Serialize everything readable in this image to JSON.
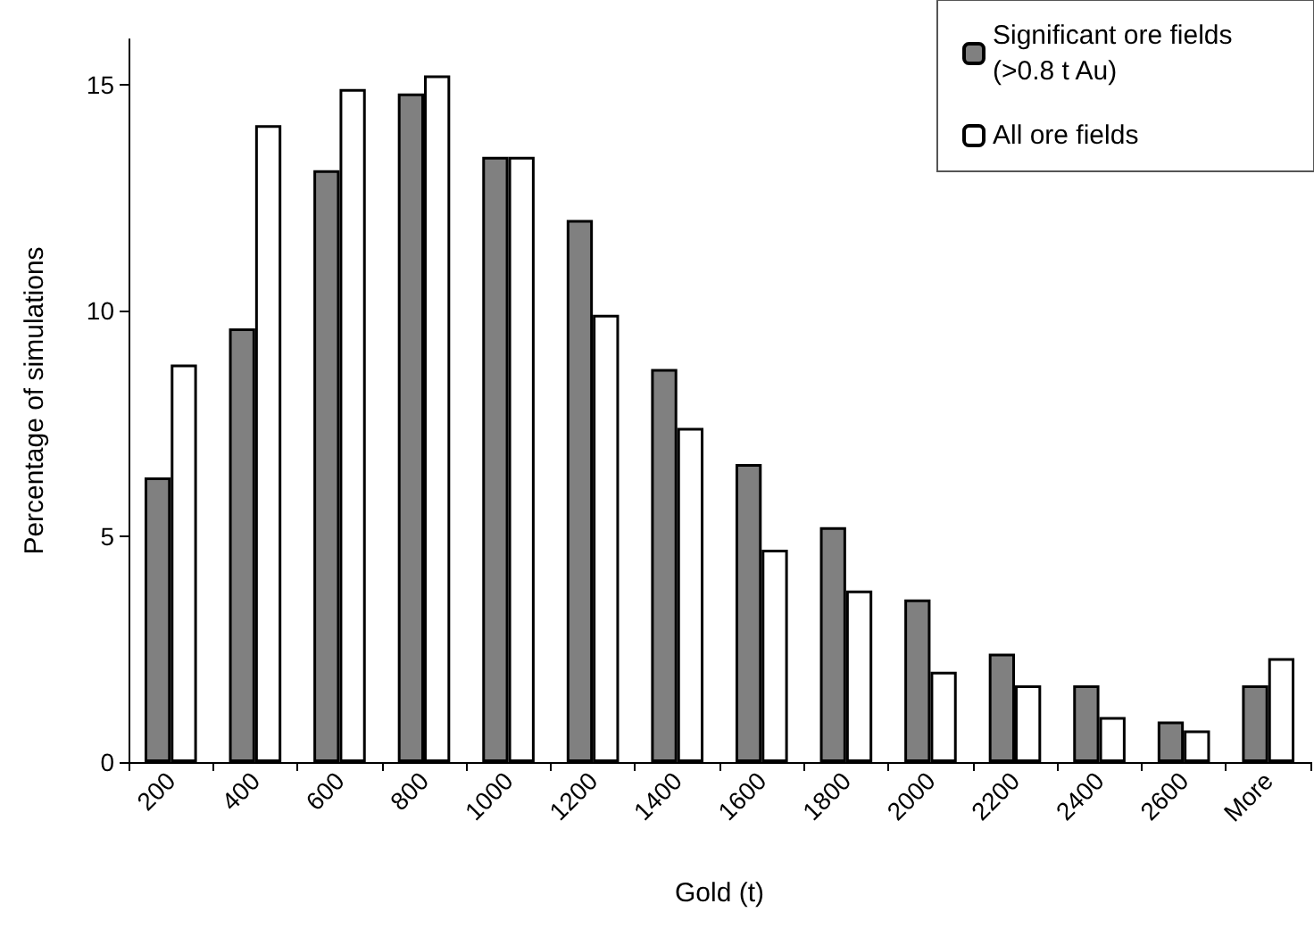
{
  "chart_data": {
    "type": "bar",
    "xlabel": "Gold (t)",
    "ylabel": "Percentage of simulations",
    "categories": [
      "200",
      "400",
      "600",
      "800",
      "1000",
      "1200",
      "1400",
      "1600",
      "1800",
      "2000",
      "2200",
      "2400",
      "2600",
      "More"
    ],
    "series": [
      {
        "name": "Significant ore fields (>0.8 t Au)",
        "color": "#808080",
        "values": [
          6.3,
          9.6,
          13.1,
          14.8,
          13.4,
          12.0,
          8.7,
          6.6,
          5.2,
          3.6,
          2.4,
          1.7,
          0.9,
          1.7
        ]
      },
      {
        "name": "All ore fields",
        "color": "#ffffff",
        "values": [
          8.8,
          14.1,
          14.9,
          15.2,
          13.4,
          9.9,
          7.4,
          4.7,
          3.8,
          2.0,
          1.7,
          1.0,
          0.7,
          2.3
        ]
      }
    ],
    "ylim": [
      0,
      16
    ],
    "yticks": [
      0,
      5,
      10,
      15
    ],
    "grid": false,
    "legend": "top right"
  }
}
